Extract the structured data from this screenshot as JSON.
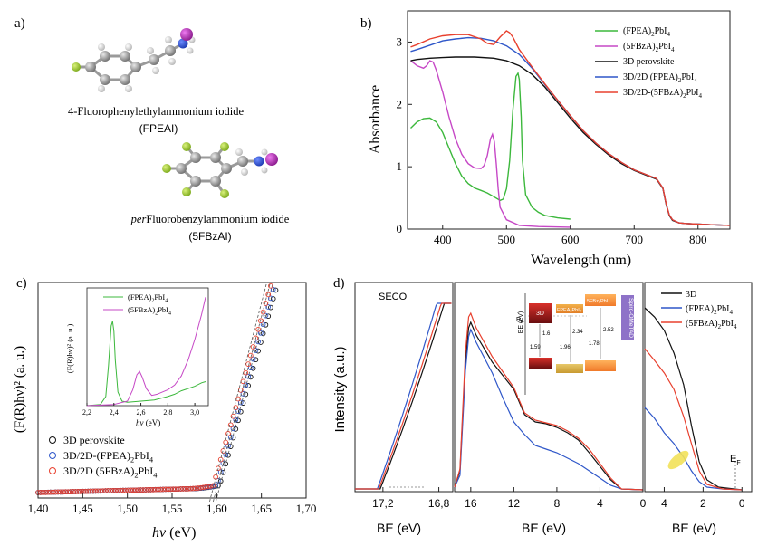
{
  "panels": {
    "a": {
      "label": "a)",
      "mol1_name": "4-Fluorophenylethylammonium iodide",
      "mol1_abbr": "(FPEAI)",
      "mol2_name_italic": "per",
      "mol2_name_rest": "Fluorobenzylammonium iodide",
      "mol2_abbr": "(5FBzAI)"
    },
    "b": {
      "label": "b)"
    },
    "c": {
      "label": "c)"
    },
    "d": {
      "label": "d)"
    }
  },
  "colors": {
    "green": "#3cb83c",
    "magenta": "#c648c6",
    "black": "#111111",
    "blue": "#2f57c9",
    "red": "#e8402e"
  },
  "chart_data": [
    {
      "id": "b",
      "type": "line",
      "xlabel": "Wavelength (nm)",
      "ylabel": "Absorbance",
      "xlim": [
        345,
        850
      ],
      "ylim": [
        0,
        3.5
      ],
      "xticks": [
        400,
        500,
        600,
        700,
        800
      ],
      "yticks": [
        0,
        1,
        2,
        3
      ],
      "legend_position": "top-right",
      "series": [
        {
          "name_main": "(FPEA)",
          "name_sub1": "2",
          "name_mid": "PbI",
          "name_sub2": "4",
          "color": "#3cb83c",
          "x": [
            350,
            360,
            370,
            380,
            390,
            400,
            410,
            420,
            430,
            440,
            450,
            460,
            470,
            480,
            490,
            495,
            500,
            505,
            510,
            515,
            518,
            520,
            523,
            525,
            530,
            540,
            550,
            560,
            580,
            600
          ],
          "y": [
            1.62,
            1.72,
            1.77,
            1.78,
            1.72,
            1.55,
            1.3,
            1.05,
            0.85,
            0.73,
            0.66,
            0.62,
            0.58,
            0.52,
            0.46,
            0.48,
            0.65,
            1.1,
            1.9,
            2.45,
            2.5,
            2.4,
            1.8,
            1.1,
            0.55,
            0.35,
            0.27,
            0.22,
            0.18,
            0.16
          ]
        },
        {
          "name_main": "(5FBzA)",
          "name_sub1": "2",
          "name_mid": "PbI",
          "name_sub2": "4",
          "color": "#c648c6",
          "x": [
            350,
            360,
            370,
            375,
            380,
            385,
            390,
            400,
            410,
            420,
            430,
            440,
            450,
            460,
            465,
            470,
            475,
            478,
            481,
            484,
            487,
            490,
            500,
            520,
            550,
            600
          ],
          "y": [
            2.7,
            2.62,
            2.58,
            2.62,
            2.7,
            2.68,
            2.55,
            2.2,
            1.8,
            1.45,
            1.2,
            1.05,
            0.98,
            0.97,
            1.02,
            1.18,
            1.45,
            1.52,
            1.4,
            1.05,
            0.65,
            0.35,
            0.15,
            0.06,
            0.04,
            0.03
          ]
        },
        {
          "name_main": "3D perovskite",
          "name_sub1": "",
          "name_mid": "",
          "name_sub2": "",
          "color": "#111111",
          "x": [
            350,
            360,
            380,
            400,
            420,
            450,
            480,
            500,
            520,
            540,
            560,
            580,
            600,
            620,
            640,
            660,
            680,
            700,
            720,
            735,
            745,
            750,
            755,
            760,
            770,
            780,
            800,
            820,
            850
          ],
          "y": [
            2.7,
            2.72,
            2.74,
            2.75,
            2.76,
            2.76,
            2.74,
            2.7,
            2.62,
            2.48,
            2.28,
            2.03,
            1.78,
            1.55,
            1.36,
            1.19,
            1.05,
            0.94,
            0.86,
            0.8,
            0.65,
            0.4,
            0.22,
            0.14,
            0.1,
            0.09,
            0.08,
            0.07,
            0.06
          ]
        },
        {
          "name_main": "3D/2D (FPEA)",
          "name_sub1": "2",
          "name_mid": "PbI",
          "name_sub2": "4",
          "color": "#2f57c9",
          "x": [
            350,
            360,
            380,
            400,
            420,
            440,
            460,
            480,
            500,
            520,
            540,
            560,
            580,
            600,
            620,
            640,
            660,
            680,
            700,
            720,
            735,
            745,
            750,
            755,
            760,
            770,
            780,
            800,
            820,
            850
          ],
          "y": [
            2.85,
            2.88,
            2.95,
            3.02,
            3.05,
            3.07,
            3.06,
            3.02,
            2.94,
            2.8,
            2.58,
            2.32,
            2.07,
            1.82,
            1.58,
            1.38,
            1.21,
            1.07,
            0.95,
            0.87,
            0.81,
            0.66,
            0.41,
            0.23,
            0.15,
            0.1,
            0.09,
            0.08,
            0.07,
            0.06
          ]
        },
        {
          "name_main": "3D/2D-(5FBzA)",
          "name_sub1": "2",
          "name_mid": "PbI",
          "name_sub2": "4",
          "color": "#e8402e",
          "x": [
            350,
            360,
            380,
            400,
            420,
            440,
            460,
            470,
            480,
            490,
            500,
            505,
            510,
            520,
            540,
            560,
            580,
            600,
            620,
            640,
            660,
            680,
            700,
            720,
            735,
            745,
            750,
            755,
            760,
            770,
            780,
            800,
            820,
            850
          ],
          "y": [
            2.92,
            2.96,
            3.05,
            3.1,
            3.12,
            3.12,
            3.05,
            2.98,
            2.96,
            3.08,
            3.18,
            3.15,
            3.08,
            2.88,
            2.6,
            2.33,
            2.07,
            1.82,
            1.58,
            1.38,
            1.21,
            1.07,
            0.95,
            0.87,
            0.81,
            0.66,
            0.41,
            0.23,
            0.15,
            0.1,
            0.09,
            0.08,
            0.07,
            0.06
          ]
        }
      ]
    },
    {
      "id": "c",
      "type": "scatter",
      "xlabel_italic": "hν",
      "xlabel_rest": " (eV)",
      "ylabel": "(F(R)hν)² (a. u.)",
      "xlim": [
        1.4,
        1.7
      ],
      "xticks": [
        "1,40",
        "1,45",
        "1,50",
        "1,55",
        "1,60",
        "1,65",
        "1,70"
      ],
      "legend_position": "bottom-left",
      "series": [
        {
          "name_main": "3D perovskite",
          "name_sub1": "",
          "name_mid": "",
          "name_sub2": "",
          "color": "#111111",
          "onset": 1.603
        },
        {
          "name_main": "3D/2D-(FPEA)",
          "name_sub1": "2",
          "name_mid": "PbI",
          "name_sub2": "4",
          "color": "#2f57c9",
          "onset": 1.6
        },
        {
          "name_main": "3D/2D (5FBzA)",
          "name_sub1": "2",
          "name_mid": "PbI",
          "name_sub2": "4",
          "color": "#e8402e",
          "onset": 1.596
        }
      ],
      "inset": {
        "xlabel_italic": "hν",
        "xlabel_rest": " (eV)",
        "ylabel": "(F(R)hν)² (a. u.)",
        "xlim": [
          2.2,
          3.1
        ],
        "xticks": [
          "2,2",
          "2,4",
          "2,6",
          "2,8",
          "3,0"
        ],
        "series": [
          {
            "name_main": "(FPEA)",
            "name_sub1": "2",
            "name_mid": "PbI",
            "name_sub2": "4",
            "color": "#3cb83c",
            "x": [
              2.2,
              2.3,
              2.34,
              2.36,
              2.38,
              2.39,
              2.4,
              2.41,
              2.43,
              2.46,
              2.5,
              2.6,
              2.7,
              2.8,
              2.85,
              2.9,
              2.95,
              3.0,
              3.05,
              3.08
            ],
            "y": [
              0.0,
              0.01,
              0.08,
              0.35,
              0.7,
              0.74,
              0.65,
              0.4,
              0.12,
              0.04,
              0.03,
              0.04,
              0.05,
              0.08,
              0.1,
              0.13,
              0.15,
              0.17,
              0.2,
              0.21
            ]
          },
          {
            "name_main": "(5FBzA)",
            "name_sub1": "2",
            "name_mid": "PbI",
            "name_sub2": "4",
            "color": "#c648c6",
            "x": [
              2.2,
              2.4,
              2.5,
              2.54,
              2.57,
              2.59,
              2.61,
              2.64,
              2.68,
              2.72,
              2.8,
              2.85,
              2.9,
              2.95,
              3.0,
              3.05,
              3.08
            ],
            "y": [
              0.0,
              0.01,
              0.04,
              0.14,
              0.27,
              0.3,
              0.25,
              0.15,
              0.09,
              0.1,
              0.14,
              0.18,
              0.26,
              0.4,
              0.58,
              0.8,
              0.95
            ]
          }
        ]
      }
    },
    {
      "id": "d",
      "type": "line",
      "ylabel": "Intensity (a.u.)",
      "xlabel": "BE (eV)",
      "seco_label": "SECO",
      "seco_xticks": [
        "17,2",
        "16,8"
      ],
      "mid_xticks": [
        "16",
        "12",
        "8",
        "4",
        "0"
      ],
      "right_xticks": [
        "4",
        "2",
        "0"
      ],
      "ef_label": "E",
      "ef_sub": "F",
      "legend_position": "top-right",
      "series": [
        {
          "name_main": "3D",
          "name_sub1": "",
          "name_mid": "",
          "name_sub2": "",
          "color": "#111111"
        },
        {
          "name_main": "(FPEA)",
          "name_sub1": "2",
          "name_mid": "PbI",
          "name_sub2": "4",
          "color": "#2f57c9"
        },
        {
          "name_main": "(5FBzA)",
          "name_sub1": "2",
          "name_mid": "PbI",
          "name_sub2": "4",
          "color": "#e8402e"
        }
      ],
      "energy_diagram": {
        "ylabel": "BE (eV)",
        "ef": "E",
        "ef_sub": "F",
        "boxes": [
          "3D",
          "FPEA₂PbI₄",
          "5FBz₂PbI₄",
          "Spiro-OMeTAD"
        ],
        "values": [
          "1.6",
          "1.59",
          "2.34",
          "1.96",
          "2.52",
          "1.78"
        ]
      }
    }
  ]
}
